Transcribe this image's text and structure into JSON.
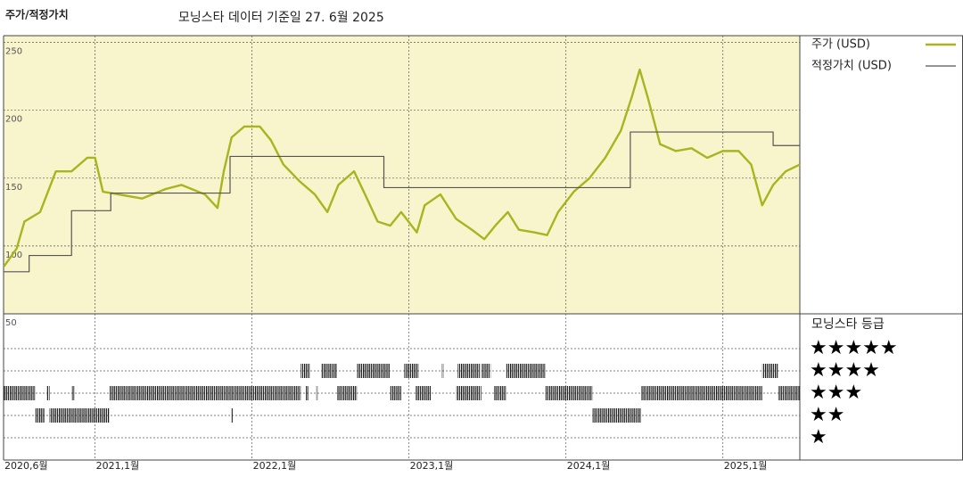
{
  "chart_data": {
    "type": "line",
    "title": "주가/적정가치",
    "subtitle": "모닝스타 데이터 기준일 27. 6월 2025",
    "xlim": [
      2020.417,
      2025.49
    ],
    "xticks": [
      {
        "value": 2020.417,
        "label": "2020,6월"
      },
      {
        "value": 2021.0,
        "label": "2021,1월"
      },
      {
        "value": 2022.0,
        "label": "2022,1월"
      },
      {
        "value": 2023.0,
        "label": "2023,1월"
      },
      {
        "value": 2024.0,
        "label": "2024,1월"
      },
      {
        "value": 2025.0,
        "label": "2025,1월"
      }
    ],
    "ylim": [
      50,
      255
    ],
    "yticks": [
      50,
      100,
      150,
      200,
      250
    ],
    "grid": true,
    "series": [
      {
        "name": "주가 (USD)",
        "color": "#a9b420",
        "drawstyle": "line",
        "x": [
          2020.42,
          2020.5,
          2020.55,
          2020.65,
          2020.75,
          2020.85,
          2020.95,
          2021.0,
          2021.05,
          2021.15,
          2021.3,
          2021.45,
          2021.55,
          2021.7,
          2021.78,
          2021.82,
          2021.87,
          2021.95,
          2022.05,
          2022.12,
          2022.2,
          2022.3,
          2022.4,
          2022.48,
          2022.55,
          2022.65,
          2022.72,
          2022.8,
          2022.88,
          2022.95,
          2023.05,
          2023.1,
          2023.2,
          2023.3,
          2023.4,
          2023.48,
          2023.55,
          2023.63,
          2023.7,
          2023.8,
          2023.88,
          2023.95,
          2024.05,
          2024.15,
          2024.25,
          2024.35,
          2024.42,
          2024.47,
          2024.52,
          2024.6,
          2024.7,
          2024.8,
          2024.9,
          2025.0,
          2025.1,
          2025.18,
          2025.25,
          2025.32,
          2025.4,
          2025.49
        ],
        "values": [
          85,
          98,
          118,
          125,
          155,
          155,
          165,
          165,
          140,
          138,
          135,
          142,
          145,
          138,
          128,
          155,
          180,
          188,
          188,
          178,
          160,
          148,
          138,
          125,
          145,
          155,
          138,
          118,
          115,
          125,
          110,
          130,
          138,
          120,
          112,
          105,
          115,
          125,
          112,
          110,
          108,
          125,
          140,
          150,
          165,
          185,
          210,
          230,
          210,
          175,
          170,
          172,
          165,
          170,
          170,
          160,
          130,
          145,
          155,
          160
        ]
      },
      {
        "name": "적정가치 (USD)",
        "color": "#555555",
        "drawstyle": "steps-post",
        "x": [
          2020.42,
          2020.58,
          2020.85,
          2021.1,
          2021.86,
          2022.84,
          2024.41,
          2025.32
        ],
        "values": [
          81,
          93,
          126,
          139,
          166,
          143,
          184,
          174
        ]
      }
    ],
    "ratings": {
      "title": "모닝스타 등급",
      "levels": [
        "★★★★★",
        "★★★★",
        "★★★",
        "★★",
        "★"
      ],
      "stars": [
        5,
        4,
        3,
        2,
        1
      ],
      "segments": [
        {
          "stars": 3,
          "start": 2020.417,
          "end": 2020.62
        },
        {
          "stars": 3,
          "start": 2020.69,
          "end": 2020.71
        },
        {
          "stars": 3,
          "start": 2020.85,
          "end": 2020.87
        },
        {
          "stars": 3,
          "start": 2021.09,
          "end": 2022.31
        },
        {
          "stars": 3,
          "start": 2022.34,
          "end": 2022.36
        },
        {
          "stars": 3,
          "start": 2022.41,
          "end": 2022.42
        },
        {
          "stars": 3,
          "start": 2022.54,
          "end": 2022.67
        },
        {
          "stars": 3,
          "start": 2022.88,
          "end": 2022.95
        },
        {
          "stars": 3,
          "start": 2023.04,
          "end": 2023.14
        },
        {
          "stars": 3,
          "start": 2023.3,
          "end": 2023.46
        },
        {
          "stars": 3,
          "start": 2023.54,
          "end": 2023.62
        },
        {
          "stars": 3,
          "start": 2023.87,
          "end": 2024.17
        },
        {
          "stars": 3,
          "start": 2024.48,
          "end": 2025.25
        },
        {
          "stars": 3,
          "start": 2025.35,
          "end": 2025.49
        },
        {
          "stars": 4,
          "start": 2022.31,
          "end": 2022.37
        },
        {
          "stars": 4,
          "start": 2022.44,
          "end": 2022.54
        },
        {
          "stars": 4,
          "start": 2022.67,
          "end": 2022.88
        },
        {
          "stars": 4,
          "start": 2022.97,
          "end": 2023.06
        },
        {
          "stars": 4,
          "start": 2023.21,
          "end": 2023.22
        },
        {
          "stars": 4,
          "start": 2023.31,
          "end": 2023.45
        },
        {
          "stars": 4,
          "start": 2023.46,
          "end": 2023.52
        },
        {
          "stars": 4,
          "start": 2023.62,
          "end": 2023.87
        },
        {
          "stars": 4,
          "start": 2025.25,
          "end": 2025.35
        },
        {
          "stars": 2,
          "start": 2020.62,
          "end": 2020.68
        },
        {
          "stars": 2,
          "start": 2020.71,
          "end": 2021.09
        },
        {
          "stars": 2,
          "start": 2021.87,
          "end": 2021.88
        },
        {
          "stars": 2,
          "start": 2024.17,
          "end": 2024.48
        }
      ]
    }
  }
}
